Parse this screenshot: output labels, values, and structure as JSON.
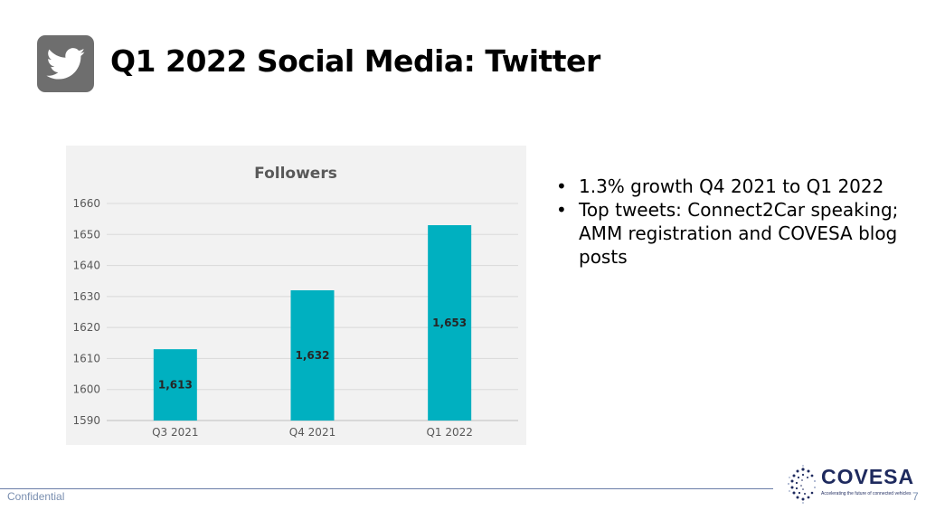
{
  "slide": {
    "title": "Q1 2022 Social Media: Twitter",
    "icon": "twitter-bird-icon",
    "bullets": [
      "1.3% growth Q4 2021 to Q1 2022",
      "Top tweets: Connect2Car speaking; AMM registration and COVESA blog posts"
    ]
  },
  "chart_data": {
    "type": "bar",
    "title": "Followers",
    "categories": [
      "Q3 2021",
      "Q4 2021",
      "Q1 2022"
    ],
    "values": [
      1613,
      1632,
      1653
    ],
    "data_labels": [
      "1,613",
      "1,632",
      "1,653"
    ],
    "ylim": [
      1590,
      1660
    ],
    "yticks": [
      1590,
      1600,
      1610,
      1620,
      1630,
      1640,
      1650,
      1660
    ],
    "grid": true,
    "legend": "none",
    "bar_color": "#00b0c0",
    "background": "#f2f2f2"
  },
  "footer": {
    "confidential": "Confidential",
    "page_number": "7",
    "logo_name": "COVESA",
    "logo_tagline": "Accelerating the future of connected vehicles"
  }
}
